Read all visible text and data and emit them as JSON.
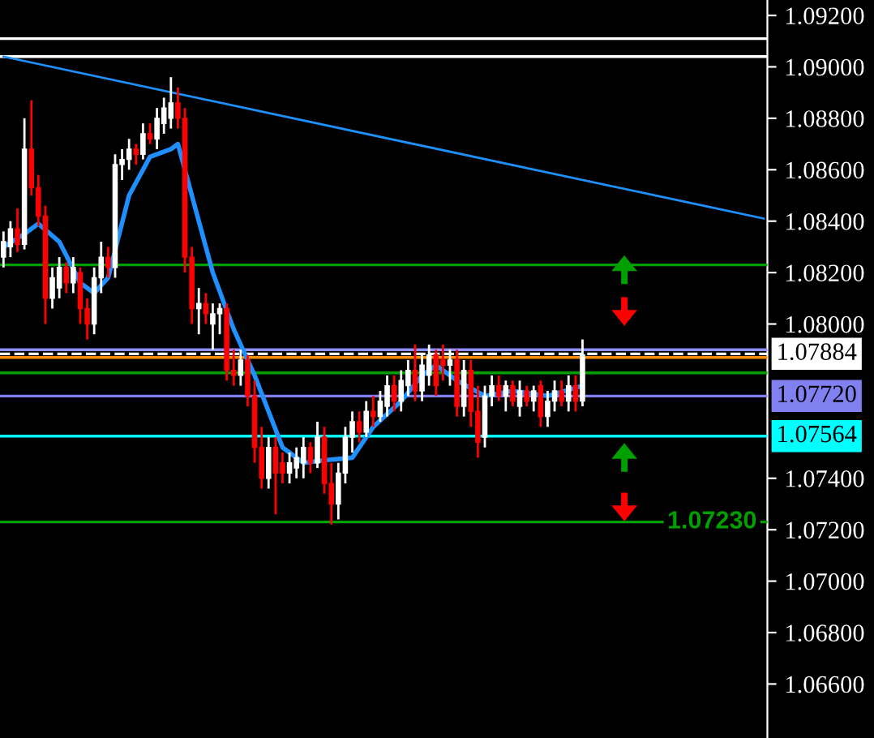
{
  "chart_data": {
    "type": "candlestick",
    "categories": [
      null,
      null,
      null,
      null,
      null,
      null,
      null,
      null,
      null,
      null,
      null,
      null,
      null,
      null,
      null,
      null,
      null,
      null,
      null,
      null,
      null,
      null,
      null,
      null,
      null,
      null,
      null,
      null,
      null,
      null,
      null,
      null,
      null,
      null,
      null,
      null,
      null,
      null,
      null,
      null,
      null,
      null,
      null,
      null,
      null,
      null,
      null,
      null,
      null,
      null,
      null,
      null,
      null,
      null,
      null,
      null,
      null,
      null,
      null,
      null,
      null,
      null,
      null,
      null,
      null,
      null,
      null,
      null,
      null,
      null,
      null,
      null,
      null,
      null,
      null,
      null,
      null,
      null,
      null,
      null,
      null,
      null,
      null,
      null,
      null,
      null,
      null,
      null,
      null,
      null,
      null,
      null,
      null,
      null,
      null,
      null,
      null,
      null,
      null,
      null,
      null,
      null,
      null,
      null,
      null,
      null,
      null,
      null,
      null,
      null
    ],
    "ohlc": [
      [
        1.0826,
        1.0836,
        1.0822,
        1.0832
      ],
      [
        1.083,
        1.084,
        1.0826,
        1.0837
      ],
      [
        1.0837,
        1.0845,
        1.0828,
        1.0831
      ],
      [
        1.0831,
        1.088,
        1.0829,
        1.0868
      ],
      [
        1.0868,
        1.0887,
        1.085,
        1.0853
      ],
      [
        1.0853,
        1.0858,
        1.0838,
        1.0842
      ],
      [
        1.0842,
        1.0846,
        1.08,
        1.081
      ],
      [
        1.081,
        1.0822,
        1.0806,
        1.0818
      ],
      [
        1.0814,
        1.0826,
        1.081,
        1.0822
      ],
      [
        1.0822,
        1.0824,
        1.0812,
        1.0816
      ],
      [
        1.0816,
        1.0826,
        1.0812,
        1.0822
      ],
      [
        1.082,
        1.0822,
        1.08,
        1.0806
      ],
      [
        1.0806,
        1.081,
        1.0794,
        1.08
      ],
      [
        1.08,
        1.0822,
        1.0796,
        1.0818
      ],
      [
        1.0818,
        1.0832,
        1.0812,
        1.0826
      ],
      [
        1.0826,
        1.083,
        1.0818,
        1.0822
      ],
      [
        1.0822,
        1.0866,
        1.0818,
        1.0862
      ],
      [
        1.0862,
        1.0868,
        1.0856,
        1.0864
      ],
      [
        1.0864,
        1.0872,
        1.086,
        1.0868
      ],
      [
        1.0868,
        1.087,
        1.0862,
        1.0866
      ],
      [
        1.0866,
        1.0878,
        1.0864,
        1.0874
      ],
      [
        1.0874,
        1.0878,
        1.087,
        1.0872
      ],
      [
        1.0872,
        1.0884,
        1.0868,
        1.088
      ],
      [
        1.0878,
        1.0888,
        1.0874,
        1.0884
      ],
      [
        1.088,
        1.0896,
        1.0876,
        1.0886
      ],
      [
        1.0886,
        1.0892,
        1.0876,
        1.088
      ],
      [
        1.088,
        1.0884,
        1.082,
        1.0826
      ],
      [
        1.0826,
        1.083,
        1.08,
        1.0806
      ],
      [
        1.0806,
        1.0814,
        1.0796,
        1.0808
      ],
      [
        1.0808,
        1.0812,
        1.08,
        1.0804
      ],
      [
        1.08,
        1.0808,
        1.079,
        1.0804
      ],
      [
        1.0804,
        1.0808,
        1.0796,
        1.0806
      ],
      [
        1.0806,
        1.0808,
        1.0778,
        1.0782
      ],
      [
        1.0782,
        1.079,
        1.0776,
        1.078
      ],
      [
        1.078,
        1.079,
        1.0776,
        1.0786
      ],
      [
        1.0786,
        1.0788,
        1.0768,
        1.0772
      ],
      [
        1.0772,
        1.0778,
        1.0746,
        1.0752
      ],
      [
        1.0752,
        1.076,
        1.0736,
        1.074
      ],
      [
        1.074,
        1.0756,
        1.0736,
        1.0752
      ],
      [
        1.0752,
        1.0756,
        1.0726,
        1.0742
      ],
      [
        1.0746,
        1.075,
        1.0738,
        1.0742
      ],
      [
        1.0742,
        1.075,
        1.0738,
        1.0746
      ],
      [
        1.0744,
        1.0752,
        1.074,
        1.0748
      ],
      [
        1.0746,
        1.0756,
        1.074,
        1.0752
      ],
      [
        1.0752,
        1.0754,
        1.0742,
        1.0746
      ],
      [
        1.0746,
        1.0762,
        1.0744,
        1.0756
      ],
      [
        1.0756,
        1.076,
        1.0734,
        1.0738
      ],
      [
        1.0738,
        1.0746,
        1.0722,
        1.073
      ],
      [
        1.073,
        1.0746,
        1.0724,
        1.0742
      ],
      [
        1.0742,
        1.076,
        1.0738,
        1.0756
      ],
      [
        1.0756,
        1.0766,
        1.075,
        1.0762
      ],
      [
        1.0762,
        1.0766,
        1.0754,
        1.0758
      ],
      [
        1.0758,
        1.077,
        1.0756,
        1.0766
      ],
      [
        1.0766,
        1.0772,
        1.076,
        1.0764
      ],
      [
        1.0764,
        1.0774,
        1.0762,
        1.077
      ],
      [
        1.0768,
        1.078,
        1.0764,
        1.0776
      ],
      [
        1.0776,
        1.078,
        1.0766,
        1.077
      ],
      [
        1.077,
        1.0782,
        1.0766,
        1.0778
      ],
      [
        1.0776,
        1.0786,
        1.0772,
        1.0782
      ],
      [
        1.0782,
        1.0792,
        1.077,
        1.0774
      ],
      [
        1.0774,
        1.0788,
        1.077,
        1.0784
      ],
      [
        1.078,
        1.0792,
        1.0776,
        1.0788
      ],
      [
        1.0788,
        1.079,
        1.0772,
        1.0776
      ],
      [
        1.0786,
        1.0792,
        1.0778,
        1.0784
      ],
      [
        1.0784,
        1.079,
        1.0776,
        1.0786
      ],
      [
        1.0786,
        1.079,
        1.0764,
        1.0768
      ],
      [
        1.0768,
        1.0786,
        1.0764,
        1.0782
      ],
      [
        1.0782,
        1.0786,
        1.076,
        1.0766
      ],
      [
        1.0766,
        1.0776,
        1.0748,
        1.0754
      ],
      [
        1.0756,
        1.0776,
        1.0752,
        1.0772
      ],
      [
        1.0772,
        1.078,
        1.0768,
        1.0776
      ],
      [
        1.0776,
        1.078,
        1.077,
        1.0772
      ],
      [
        1.0772,
        1.0778,
        1.0766,
        1.0776
      ],
      [
        1.0776,
        1.0778,
        1.0768,
        1.077
      ],
      [
        1.0768,
        1.0778,
        1.0764,
        1.0774
      ],
      [
        1.0774,
        1.0776,
        1.0768,
        1.077
      ],
      [
        1.077,
        1.0776,
        1.0766,
        1.0774
      ],
      [
        1.0776,
        1.0778,
        1.076,
        1.0764
      ],
      [
        1.0764,
        1.0774,
        1.076,
        1.077
      ],
      [
        1.077,
        1.0778,
        1.0766,
        1.0774
      ],
      [
        1.0774,
        1.0778,
        1.0768,
        1.077
      ],
      [
        1.077,
        1.078,
        1.0766,
        1.0776
      ],
      [
        1.0776,
        1.078,
        1.0766,
        1.077
      ],
      [
        1.077,
        1.0794,
        1.0768,
        1.0788
      ],
      null,
      null,
      null,
      null,
      null,
      null,
      null,
      null,
      null,
      null,
      null,
      null,
      null,
      null,
      null,
      null,
      null,
      null,
      null,
      null,
      null,
      null,
      null,
      null,
      null,
      null
    ],
    "series": [
      {
        "type": "line",
        "color": "#1e90ff",
        "values": [
          1.083,
          null,
          null,
          1.0835,
          null,
          1.0839,
          null,
          null,
          1.0832,
          null,
          null,
          1.0816,
          null,
          1.0812,
          null,
          1.0818,
          null,
          null,
          1.085,
          null,
          null,
          1.0865,
          null,
          null,
          1.0868,
          1.087,
          null,
          1.085,
          null,
          null,
          1.082,
          null,
          null,
          1.0798,
          null,
          null,
          1.078,
          null,
          null,
          null,
          1.0752,
          null,
          null,
          1.0746,
          null,
          null,
          1.0747,
          null,
          null,
          null,
          1.0748,
          null,
          null,
          1.076,
          null,
          null,
          null,
          1.077,
          null,
          null,
          1.078,
          null,
          1.0784,
          null,
          null,
          1.0778,
          null,
          null,
          null,
          1.0772,
          null,
          null,
          null,
          1.0774,
          null,
          null,
          null,
          null,
          1.0772,
          null,
          null,
          null,
          null,
          1.0776,
          null,
          null,
          null,
          null,
          null,
          null,
          null,
          null,
          null,
          null,
          null,
          null,
          null,
          null,
          null,
          null,
          null,
          null,
          null,
          null,
          null,
          null,
          null,
          null,
          null,
          null
        ]
      },
      {
        "type": "line",
        "color": "#1e90ff",
        "values": [
          1.0904,
          null,
          null,
          null,
          null,
          null,
          null,
          null,
          null,
          null,
          null,
          null,
          null,
          null,
          null,
          null,
          null,
          null,
          null,
          null,
          null,
          null,
          null,
          null,
          null,
          null,
          null,
          null,
          null,
          null,
          null,
          null,
          null,
          null,
          null,
          null,
          null,
          null,
          null,
          null,
          null,
          null,
          null,
          null,
          null,
          null,
          null,
          null,
          null,
          null,
          null,
          null,
          null,
          null,
          null,
          null,
          null,
          null,
          null,
          null,
          null,
          null,
          null,
          null,
          null,
          null,
          null,
          null,
          null,
          null,
          null,
          null,
          null,
          null,
          null,
          null,
          null,
          null,
          null,
          null,
          null,
          null,
          null,
          null,
          null,
          null,
          null,
          null,
          null,
          null,
          null,
          null,
          null,
          null,
          null,
          null,
          null,
          null,
          null,
          null,
          null,
          null,
          null,
          null,
          null,
          null,
          null,
          null,
          null,
          1.0841
        ]
      }
    ],
    "ylim": [
      1.0639,
      1.0926
    ],
    "yticks": [
      {
        "value": 1.092,
        "label": "1.09200"
      },
      {
        "value": 1.09,
        "label": "1.09000"
      },
      {
        "value": 1.088,
        "label": "1.08800"
      },
      {
        "value": 1.086,
        "label": "1.08600"
      },
      {
        "value": 1.084,
        "label": "1.08400"
      },
      {
        "value": 1.082,
        "label": "1.08200"
      },
      {
        "value": 1.08,
        "label": "1.08000"
      },
      {
        "value": 1.074,
        "label": "1.07400"
      },
      {
        "value": 1.072,
        "label": "1.07200"
      },
      {
        "value": 1.07,
        "label": "1.07000"
      },
      {
        "value": 1.068,
        "label": "1.06800"
      },
      {
        "value": 1.066,
        "label": "1.06600"
      }
    ],
    "ref_lines": [
      {
        "axis": "y",
        "value": 1.0911,
        "color": "#ffffff"
      },
      {
        "axis": "y",
        "value": 1.0904,
        "color": "#ffffff"
      },
      {
        "axis": "y",
        "value": 1.0823,
        "color": "#00a000"
      },
      {
        "axis": "y",
        "value": 1.079,
        "color": "#9090ff"
      },
      {
        "axis": "y",
        "value": 1.07884,
        "label": "1.07884",
        "color": "#ffffff",
        "line_style": "dashed"
      },
      {
        "axis": "y",
        "value": 1.0787,
        "color": "#ff8c00"
      },
      {
        "axis": "y",
        "value": 1.0781,
        "color": "#00a000"
      },
      {
        "axis": "y",
        "value": 1.0772,
        "label": "1.07720",
        "color": "#8080f0"
      },
      {
        "axis": "y",
        "value": 1.07564,
        "label": "1.07564",
        "color": "#00ffff"
      },
      {
        "axis": "y",
        "value": 1.0723,
        "label": "1.07230",
        "color": "#00a000"
      }
    ],
    "grid": false
  }
}
